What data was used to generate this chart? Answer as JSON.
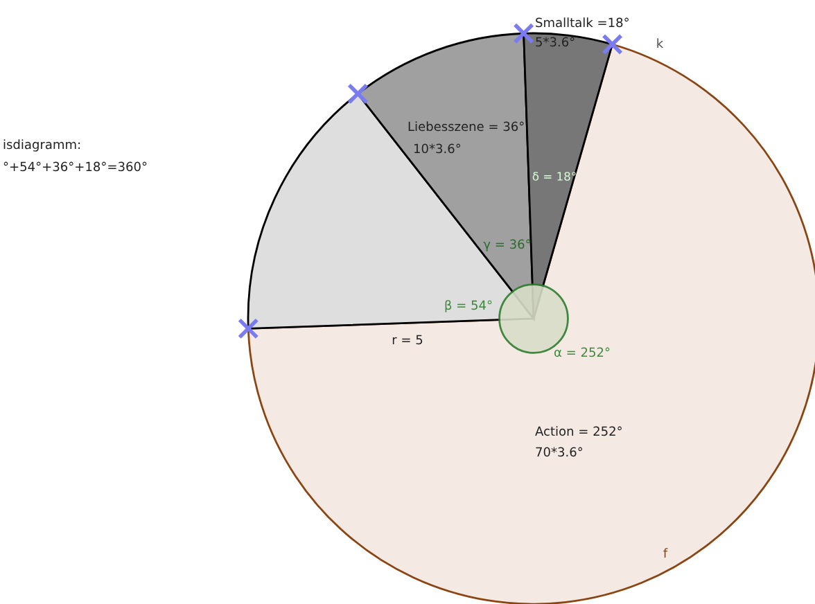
{
  "chart_data": {
    "type": "pie",
    "categories": [
      "Action = 252°",
      null,
      "Liebesszene = 36°",
      "Smalltalk =18°"
    ],
    "values": [
      252,
      54,
      36,
      18
    ],
    "colors": [
      "#f5e9e4",
      "#dedede",
      "#a0a0a0",
      "#777777"
    ],
    "annotations": [
      "α = 252°",
      "β = 54°",
      "γ = 36°",
      "δ = 18°",
      "r = 5",
      "k",
      "f",
      "isdiagramm:",
      "°+54°+36°+18°=360°",
      "70*3.6°",
      "10*3.6°",
      "5*3.6°"
    ],
    "legend": false
  }
}
